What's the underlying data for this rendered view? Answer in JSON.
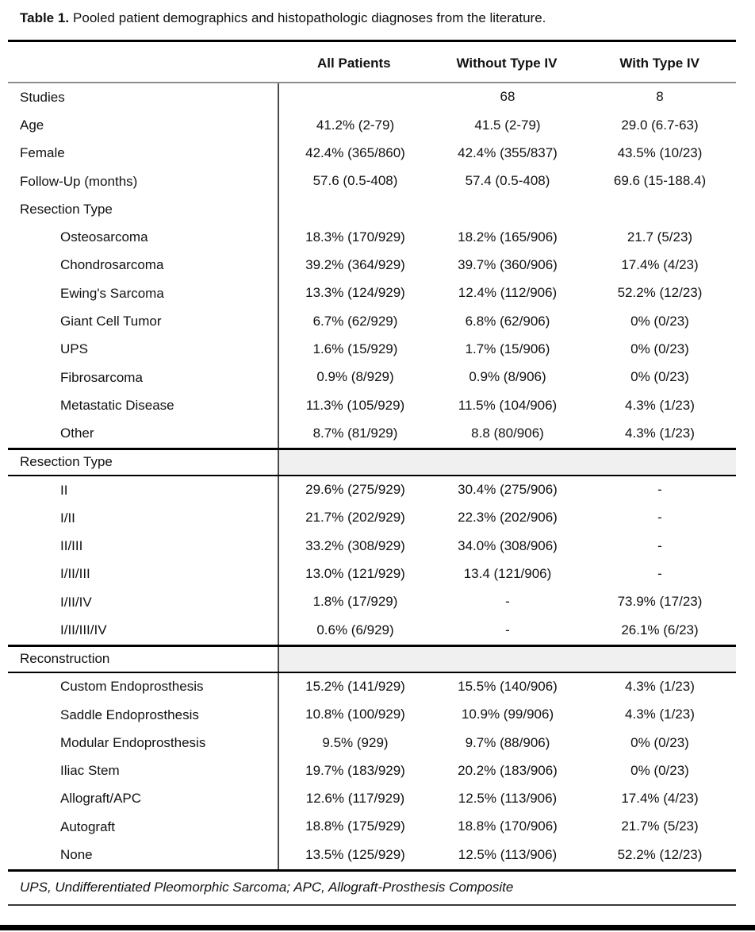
{
  "title": {
    "prefix": "Table 1.",
    "text": "Pooled patient demographics and histopathologic diagnoses from the literature."
  },
  "colors": {
    "rule": "#000000",
    "header-rule": "#8e8e8e",
    "divider": "#4a4a4a",
    "shade": "#f0f0f0",
    "footnote-rule": "#3a3a3a",
    "page-bar": "#000000"
  },
  "table": {
    "columns": [
      "All Patients",
      "Without Type IV",
      "With Type IV"
    ],
    "rows": [
      {
        "label": "Studies",
        "values": [
          "",
          "68",
          "8"
        ]
      },
      {
        "label": "Age",
        "values": [
          "41.2% (2-79)",
          "41.5 (2-79)",
          "29.0 (6.7-63)"
        ]
      },
      {
        "label": "Female",
        "values": [
          "42.4% (365/860)",
          "42.4% (355/837)",
          "43.5% (10/23)"
        ]
      },
      {
        "label": "Follow-Up (months)",
        "values": [
          "57.6 (0.5-408)",
          "57.4 (0.5-408)",
          "69.6 (15-188.4)"
        ]
      },
      {
        "label": "Resection Type",
        "values": [
          "",
          "",
          ""
        ]
      },
      {
        "label": "Osteosarcoma",
        "indent": true,
        "values": [
          "18.3% (170/929)",
          "18.2% (165/906)",
          "21.7 (5/23)"
        ]
      },
      {
        "label": "Chondrosarcoma",
        "indent": true,
        "values": [
          "39.2% (364/929)",
          "39.7% (360/906)",
          "17.4% (4/23)"
        ]
      },
      {
        "label": "Ewing's Sarcoma",
        "indent": true,
        "values": [
          "13.3% (124/929)",
          "12.4% (112/906)",
          "52.2% (12/23)"
        ]
      },
      {
        "label": "Giant Cell Tumor",
        "indent": true,
        "values": [
          "6.7% (62/929)",
          "6.8% (62/906)",
          "0% (0/23)"
        ]
      },
      {
        "label": "UPS",
        "indent": true,
        "values": [
          "1.6% (15/929)",
          "1.7% (15/906)",
          "0% (0/23)"
        ]
      },
      {
        "label": "Fibrosarcoma",
        "indent": true,
        "values": [
          "0.9% (8/929)",
          "0.9% (8/906)",
          "0% (0/23)"
        ]
      },
      {
        "label": "Metastatic Disease",
        "indent": true,
        "values": [
          "11.3% (105/929)",
          "11.5% (104/906)",
          "4.3% (1/23)"
        ]
      },
      {
        "label": "Other",
        "indent": true,
        "values": [
          "8.7% (81/929)",
          "8.8 (80/906)",
          "4.3% (1/23)"
        ]
      },
      {
        "label": "Resection Type",
        "section": true,
        "values": [
          "",
          "",
          ""
        ]
      },
      {
        "label": "II",
        "indent": true,
        "values": [
          "29.6% (275/929)",
          "30.4% (275/906)",
          "-"
        ]
      },
      {
        "label": "I/II",
        "indent": true,
        "values": [
          "21.7% (202/929)",
          "22.3% (202/906)",
          "-"
        ]
      },
      {
        "label": "II/III",
        "indent": true,
        "values": [
          "33.2% (308/929)",
          "34.0% (308/906)",
          "-"
        ]
      },
      {
        "label": "I/II/III",
        "indent": true,
        "values": [
          "13.0% (121/929)",
          "13.4 (121/906)",
          "-"
        ]
      },
      {
        "label": "I/II/IV",
        "indent": true,
        "values": [
          "1.8% (17/929)",
          "-",
          "73.9% (17/23)"
        ]
      },
      {
        "label": "I/II/III/IV",
        "indent": true,
        "values": [
          "0.6% (6/929)",
          "-",
          "26.1% (6/23)"
        ]
      },
      {
        "label": "Reconstruction",
        "section": true,
        "values": [
          "",
          "",
          ""
        ]
      },
      {
        "label": "Custom Endoprosthesis",
        "indent": true,
        "values": [
          "15.2% (141/929)",
          "15.5% (140/906)",
          "4.3% (1/23)"
        ]
      },
      {
        "label": "Saddle Endoprosthesis",
        "indent": true,
        "values": [
          "10.8% (100/929)",
          "10.9% (99/906)",
          "4.3% (1/23)"
        ]
      },
      {
        "label": "Modular Endoprosthesis",
        "indent": true,
        "values": [
          "9.5% (929)",
          "9.7% (88/906)",
          "0% (0/23)"
        ]
      },
      {
        "label": "Iliac Stem",
        "indent": true,
        "values": [
          "19.7% (183/929)",
          "20.2% (183/906)",
          "0% (0/23)"
        ]
      },
      {
        "label": "Allograft/APC",
        "indent": true,
        "values": [
          "12.6% (117/929)",
          "12.5% (113/906)",
          "17.4% (4/23)"
        ]
      },
      {
        "label": "Autograft",
        "indent": true,
        "values": [
          "18.8% (175/929)",
          "18.8% (170/906)",
          "21.7% (5/23)"
        ]
      },
      {
        "label": "None",
        "indent": true,
        "values": [
          "13.5% (125/929)",
          "12.5% (113/906)",
          "52.2% (12/23)"
        ]
      }
    ],
    "footnote": "UPS, Undifferentiated Pleomorphic Sarcoma; APC, Allograft-Prosthesis Composite"
  }
}
